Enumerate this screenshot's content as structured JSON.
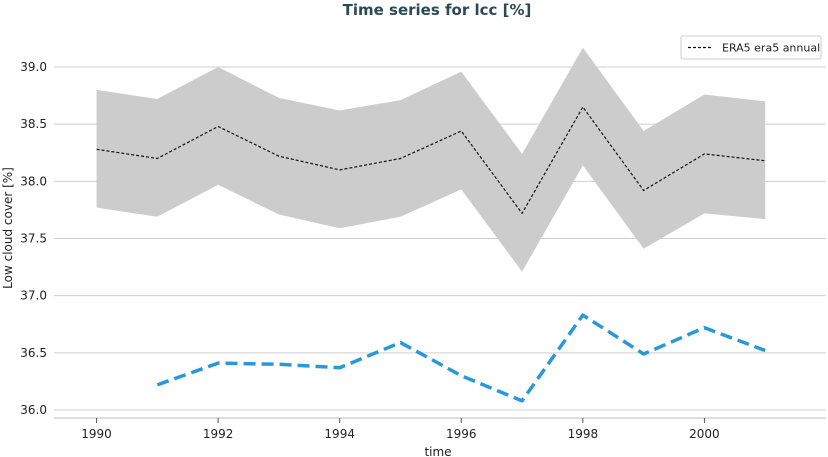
{
  "chart_data": {
    "type": "line",
    "title": "Time series for lcc [%]",
    "xlabel": "time",
    "ylabel": "Low cloud cover [%]",
    "xlim": [
      1989.3,
      2002.0
    ],
    "ylim": [
      35.93,
      39.35
    ],
    "x_ticks": [
      1990,
      1992,
      1994,
      1996,
      1998,
      2000
    ],
    "y_ticks": [
      36.0,
      36.5,
      37.0,
      37.5,
      38.0,
      38.5,
      39.0
    ],
    "x_tick_labels": [
      "1990",
      "1992",
      "1994",
      "1996",
      "1998",
      "2000"
    ],
    "y_tick_labels": [
      "36.0",
      "36.5",
      "37.0",
      "37.5",
      "38.0",
      "38.5",
      "39.0"
    ],
    "grid": "horizontal",
    "legend_position": "top-right",
    "legend": [
      "ERA5 era5 annual"
    ],
    "colors": {
      "band": "#cccccc",
      "reference": "#111111",
      "model": "#2a98d8",
      "grid": "#cfcfcf",
      "title": "#2c4a52"
    },
    "series": [
      {
        "name": "ERA5 era5 annual",
        "style": "dashed-thin",
        "x": [
          1990,
          1991,
          1992,
          1993,
          1994,
          1995,
          1996,
          1997,
          1998,
          1999,
          2000,
          2001
        ],
        "values": [
          38.28,
          38.2,
          38.48,
          38.22,
          38.1,
          38.2,
          38.44,
          37.72,
          38.65,
          37.92,
          38.24,
          38.18
        ],
        "band_upper": [
          38.8,
          38.72,
          39.0,
          38.73,
          38.62,
          38.71,
          38.96,
          38.24,
          39.17,
          38.44,
          38.76,
          38.7
        ],
        "band_lower": [
          37.77,
          37.69,
          37.97,
          37.71,
          37.59,
          37.69,
          37.93,
          37.21,
          38.14,
          37.41,
          37.72,
          37.67
        ]
      },
      {
        "style": "dashed-thick",
        "x": [
          1991,
          1992,
          1993,
          1994,
          1995,
          1996,
          1997,
          1998,
          1999,
          2000,
          2001
        ],
        "values": [
          36.22,
          36.41,
          36.4,
          36.37,
          36.59,
          36.3,
          36.08,
          36.83,
          36.49,
          36.72,
          36.52
        ]
      }
    ]
  }
}
